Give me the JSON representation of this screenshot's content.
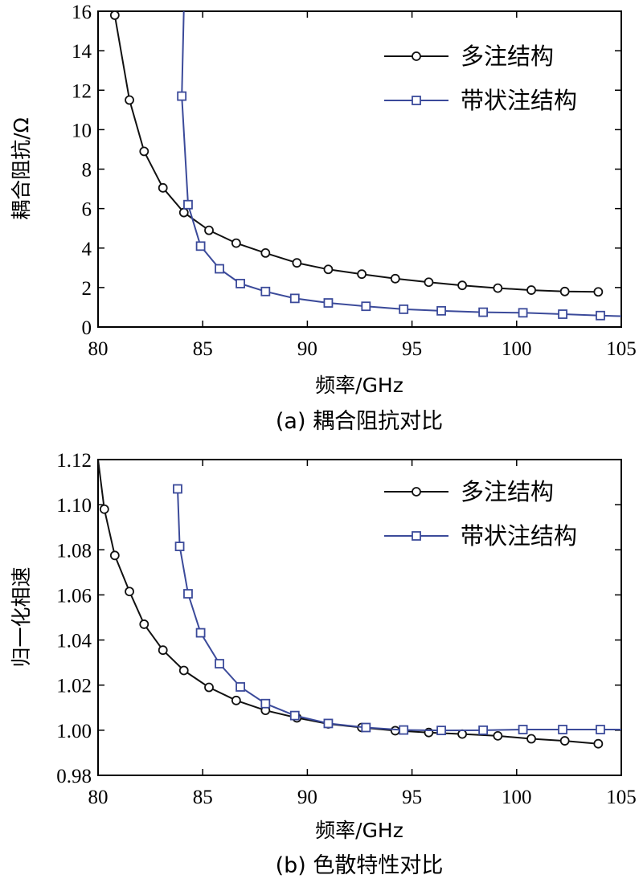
{
  "colors": {
    "multi": "#111111",
    "band": "#3b4a9a"
  },
  "chart_data": [
    {
      "type": "line",
      "title": "",
      "caption": "(a) 耦合阻抗对比",
      "xlabel": "频率/GHz",
      "ylabel": "耦合阻抗/Ω",
      "xlim": [
        80,
        105
      ],
      "ylim": [
        0,
        16
      ],
      "xticks": [
        80,
        85,
        90,
        95,
        100,
        105
      ],
      "xtick_labels": [
        "80",
        "85",
        "90",
        "95",
        "100",
        "105"
      ],
      "yticks": [
        0,
        2,
        4,
        6,
        8,
        10,
        12,
        14,
        16
      ],
      "ytick_labels": [
        "0",
        "2",
        "4",
        "6",
        "8",
        "10",
        "12",
        "14",
        "16"
      ],
      "legend_position": "top-right",
      "series": [
        {
          "name": "多注结构",
          "marker": "circle",
          "color_key": "multi",
          "x": [
            80.8,
            81.5,
            82.2,
            83.1,
            84.1,
            85.3,
            86.6,
            88.0,
            89.5,
            91.0,
            92.6,
            94.2,
            95.8,
            97.4,
            99.1,
            100.7,
            102.3,
            103.9
          ],
          "y": [
            15.8,
            11.5,
            8.9,
            7.05,
            5.8,
            4.9,
            4.25,
            3.75,
            3.25,
            2.92,
            2.68,
            2.45,
            2.27,
            2.11,
            1.97,
            1.87,
            1.8,
            1.78
          ],
          "line_x": [
            80.8,
            81.5,
            82.2,
            83.1,
            84.1,
            85.3,
            86.6,
            88.0,
            89.5,
            91.0,
            92.6,
            94.2,
            95.8,
            97.4,
            99.1,
            100.7,
            102.3,
            103.9
          ],
          "line_y": [
            15.8,
            11.5,
            8.9,
            7.05,
            5.8,
            4.9,
            4.25,
            3.75,
            3.25,
            2.92,
            2.68,
            2.45,
            2.27,
            2.11,
            1.97,
            1.87,
            1.8,
            1.78
          ]
        },
        {
          "name": "带状注结构",
          "marker": "square",
          "color_key": "band",
          "x": [
            84.0,
            84.3,
            84.9,
            85.8,
            86.8,
            88.0,
            89.4,
            91.0,
            92.8,
            94.6,
            96.4,
            98.4,
            100.3,
            102.2,
            104.0
          ],
          "y": [
            11.7,
            6.2,
            4.1,
            2.95,
            2.2,
            1.8,
            1.45,
            1.22,
            1.05,
            0.9,
            0.82,
            0.75,
            0.72,
            0.65,
            0.58
          ],
          "line_x": [
            84.1,
            84.0,
            84.3,
            84.9,
            85.8,
            86.8,
            88.0,
            89.4,
            91.0,
            92.8,
            94.6,
            96.4,
            98.4,
            100.3,
            102.2,
            104.0,
            105.0
          ],
          "line_y": [
            16.2,
            11.7,
            6.2,
            4.1,
            2.95,
            2.2,
            1.8,
            1.45,
            1.22,
            1.05,
            0.9,
            0.82,
            0.75,
            0.72,
            0.65,
            0.58,
            0.55
          ]
        }
      ]
    },
    {
      "type": "line",
      "title": "",
      "caption": "(b) 色散特性对比",
      "xlabel": "频率/GHz",
      "ylabel": "归一化相速",
      "xlim": [
        80,
        105
      ],
      "ylim": [
        0.98,
        1.12
      ],
      "xticks": [
        80,
        85,
        90,
        95,
        100,
        105
      ],
      "xtick_labels": [
        "80",
        "85",
        "90",
        "95",
        "100",
        "105"
      ],
      "yticks": [
        0.98,
        1.0,
        1.02,
        1.04,
        1.06,
        1.08,
        1.1,
        1.12
      ],
      "ytick_labels": [
        "0.98",
        "1.00",
        "1.02",
        "1.04",
        "1.06",
        "1.08",
        "1.10",
        "1.12"
      ],
      "legend_position": "top-right",
      "series": [
        {
          "name": "多注结构",
          "marker": "circle",
          "color_key": "multi",
          "x": [
            80.3,
            80.8,
            81.5,
            82.2,
            83.1,
            84.1,
            85.3,
            86.6,
            88.0,
            89.5,
            91.0,
            92.6,
            94.2,
            95.8,
            97.4,
            99.1,
            100.7,
            102.3,
            103.9
          ],
          "y": [
            1.098,
            1.0775,
            1.0615,
            1.047,
            1.0355,
            1.0265,
            1.019,
            1.0132,
            1.0088,
            1.0055,
            1.0028,
            1.0012,
            0.9998,
            0.999,
            0.9983,
            0.9975,
            0.9962,
            0.9953,
            0.994
          ],
          "line_x": [
            80.0,
            80.3,
            80.8,
            81.5,
            82.2,
            83.1,
            84.1,
            85.3,
            86.6,
            88.0,
            89.5,
            91.0,
            92.6,
            94.2,
            95.8,
            97.4,
            99.1,
            100.7,
            102.3,
            103.9
          ],
          "line_y": [
            1.12,
            1.098,
            1.0775,
            1.0615,
            1.047,
            1.0355,
            1.0265,
            1.019,
            1.0132,
            1.0088,
            1.0055,
            1.0028,
            1.0012,
            0.9998,
            0.999,
            0.9983,
            0.9975,
            0.9962,
            0.9953,
            0.994
          ]
        },
        {
          "name": "带状注结构",
          "marker": "square",
          "color_key": "band",
          "x": [
            83.8,
            83.9,
            84.3,
            84.9,
            85.8,
            86.8,
            88.0,
            89.4,
            91.0,
            92.8,
            94.6,
            96.4,
            98.4,
            100.3,
            102.2,
            104.0
          ],
          "y": [
            1.107,
            1.0815,
            1.0605,
            1.0432,
            1.0295,
            1.0192,
            1.0118,
            1.0065,
            1.003,
            1.0012,
            1.0001,
            0.9999,
            1.0,
            1.0003,
            1.0003,
            1.0003
          ],
          "line_x": [
            83.8,
            83.9,
            84.3,
            84.9,
            85.8,
            86.8,
            88.0,
            89.4,
            91.0,
            92.8,
            94.6,
            96.4,
            98.4,
            100.3,
            102.2,
            104.0,
            105.0
          ],
          "line_y": [
            1.107,
            1.0815,
            1.0605,
            1.0432,
            1.0295,
            1.0192,
            1.0118,
            1.0065,
            1.003,
            1.0012,
            1.0001,
            0.9999,
            1.0,
            1.0003,
            1.0003,
            1.0003,
            1.0003
          ]
        }
      ]
    }
  ]
}
